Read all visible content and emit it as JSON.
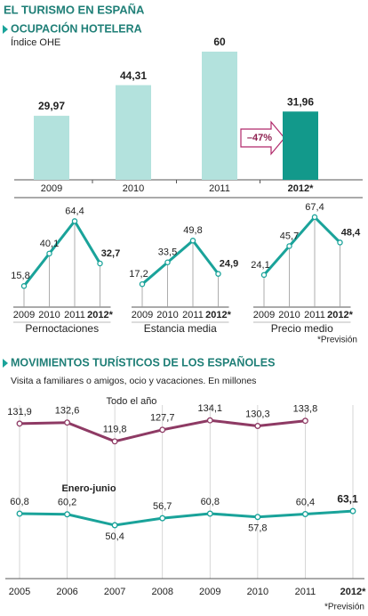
{
  "title": "EL TURISMO EN ESPAÑA",
  "chart_data": [
    {
      "type": "bar",
      "title": "OCUPACIÓN HOTELERA",
      "subtitle": "Índice OHE",
      "categories": [
        "2009",
        "2010",
        "2011",
        "2012*"
      ],
      "values": [
        29.97,
        44.31,
        60,
        31.96
      ],
      "value_labels": [
        "29,97",
        "44,31",
        "60",
        "31,96"
      ],
      "colors": [
        "#b3e2dd",
        "#b3e2dd",
        "#b3e2dd",
        "#12998b"
      ],
      "annotation": "–47%",
      "ylim": [
        0,
        60
      ]
    },
    {
      "type": "line",
      "title": "Pernoctaciones",
      "categories": [
        "2009",
        "2010",
        "2011",
        "2012*"
      ],
      "values": [
        15.8,
        40.1,
        64.4,
        32.7
      ],
      "value_labels": [
        "15,8",
        "40,1",
        "64,4",
        "32,7"
      ],
      "color": "#1aa39a",
      "ylim": [
        0,
        70
      ]
    },
    {
      "type": "line",
      "title": "Estancia media",
      "categories": [
        "2009",
        "2010",
        "2011",
        "2012*"
      ],
      "values": [
        17.2,
        33.5,
        49.8,
        24.9
      ],
      "value_labels": [
        "17,2",
        "33,5",
        "49,8",
        "24,9"
      ],
      "color": "#1aa39a",
      "ylim": [
        0,
        70
      ]
    },
    {
      "type": "line",
      "title": "Precio medio",
      "categories": [
        "2009",
        "2010",
        "2011",
        "2012*"
      ],
      "values": [
        24.1,
        45.7,
        67.4,
        48.4
      ],
      "value_labels": [
        "24,1",
        "45,7",
        "67,4",
        "48,4"
      ],
      "color": "#1aa39a",
      "ylim": [
        0,
        70
      ],
      "footnote": "*Previsión"
    },
    {
      "type": "line",
      "title": "MOVIMIENTOS TURÍSTICOS DE LOS ESPAÑOLES",
      "subtitle": "Visita a familiares o amigos, ocio y vacaciones. En millones",
      "categories": [
        "2005",
        "2006",
        "2007",
        "2008",
        "2009",
        "2010",
        "2011",
        "2012*"
      ],
      "series": [
        {
          "name": "Todo el año",
          "color": "#8e3a64",
          "values": [
            131.9,
            132.6,
            119.8,
            127.7,
            134.1,
            130.3,
            133.8,
            null
          ],
          "value_labels": [
            "131,9",
            "132,6",
            "119,8",
            "127,7",
            "134,1",
            "130,3",
            "133,8",
            null
          ]
        },
        {
          "name": "Enero-junio",
          "color": "#1aa39a",
          "axis": "y2",
          "values": [
            60.8,
            60.2,
            50.4,
            56.7,
            60.8,
            57.8,
            60.4,
            63.1
          ],
          "value_labels": [
            "60,8",
            "60,2",
            "50,4",
            "56,7",
            "60,8",
            "57,8",
            "60,4",
            "63,1"
          ]
        }
      ],
      "ylim": [
        110,
        140
      ],
      "y2lim": [
        40,
        70
      ],
      "footnote": "*Previsión"
    }
  ]
}
